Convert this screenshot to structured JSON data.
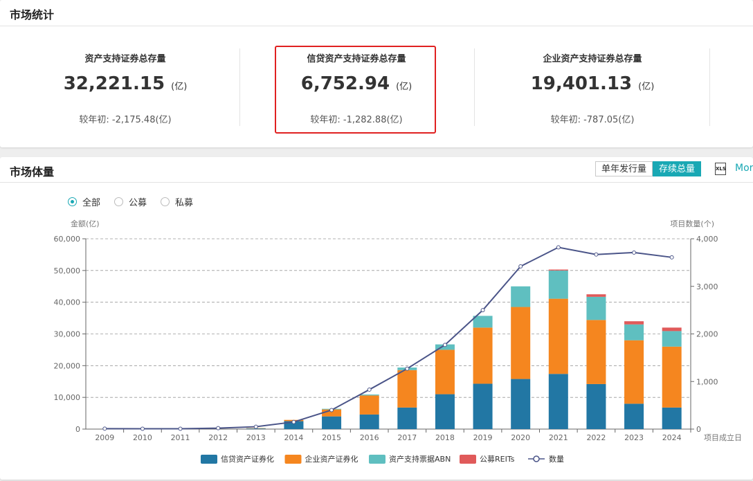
{
  "stats_panel": {
    "title": "市场统计",
    "cards": [
      {
        "label": "资产支持证券总存量",
        "value": "32,221.15",
        "unit": "(亿)",
        "change": "较年初: -2,175.48(亿)"
      },
      {
        "label": "信贷资产支持证券总存量",
        "value": "6,752.94",
        "unit": "(亿)",
        "change": "较年初: -1,282.88(亿)"
      },
      {
        "label": "企业资产支持证券总存量",
        "value": "19,401.13",
        "unit": "(亿)",
        "change": "较年初: -787.05(亿)"
      }
    ],
    "highlight_color": "#e02020"
  },
  "volume_panel": {
    "title": "市场体量",
    "toggle": {
      "options": [
        "单年发行量",
        "存续总量"
      ],
      "active": "存续总量"
    },
    "export_icon": "xls-icon",
    "export_icon_text": "XLS",
    "more_label": "More",
    "filters": {
      "options": [
        "全部",
        "公募",
        "私募"
      ],
      "selected": "全部"
    },
    "accent_color": "#19a8b4"
  },
  "chart_data": {
    "type": "bar",
    "stacked": true,
    "categories": [
      "2009",
      "2010",
      "2011",
      "2012",
      "2013",
      "2014",
      "2015",
      "2016",
      "2017",
      "2018",
      "2019",
      "2020",
      "2021",
      "2022",
      "2023",
      "2024"
    ],
    "series": [
      {
        "name": "信贷资产证券化",
        "color": "#2277a4",
        "axis": "left",
        "values": [
          0,
          0,
          0,
          0,
          200,
          2500,
          4000,
          4600,
          6800,
          11000,
          14300,
          15800,
          17400,
          14200,
          8000,
          6800
        ]
      },
      {
        "name": "企业资产证券化",
        "color": "#f5861f",
        "axis": "left",
        "values": [
          0,
          0,
          0,
          0,
          100,
          400,
          2200,
          6000,
          11800,
          14000,
          17700,
          22700,
          23700,
          20200,
          20000,
          19200
        ]
      },
      {
        "name": "资产支持票据ABN",
        "color": "#5fbfc0",
        "axis": "left",
        "values": [
          0,
          0,
          0,
          0,
          0,
          0,
          200,
          300,
          800,
          1700,
          3700,
          6500,
          8900,
          7300,
          5000,
          4900
        ]
      },
      {
        "name": "公募REITs",
        "color": "#e05a5a",
        "axis": "left",
        "values": [
          0,
          0,
          0,
          0,
          0,
          0,
          0,
          0,
          0,
          0,
          0,
          0,
          300,
          800,
          1000,
          1100
        ]
      },
      {
        "name": "数量",
        "color": "#4a5488",
        "type": "line",
        "axis": "right",
        "values": [
          10,
          8,
          8,
          20,
          50,
          150,
          400,
          830,
          1270,
          1770,
          2500,
          3420,
          3820,
          3670,
          3710,
          3610
        ]
      }
    ],
    "y_left": {
      "label": "金额(亿)",
      "min": 0,
      "max": 60000,
      "ticks": [
        "0",
        "10,000",
        "20,000",
        "30,000",
        "40,000",
        "50,000",
        "60,000"
      ]
    },
    "y_right": {
      "label": "项目数量(个)",
      "min": 0,
      "max": 4000,
      "ticks": [
        "0",
        "1,000",
        "2,000",
        "3,000",
        "4,000"
      ]
    },
    "x_label": "项目成立日",
    "grid": true,
    "legend_position": "bottom"
  }
}
